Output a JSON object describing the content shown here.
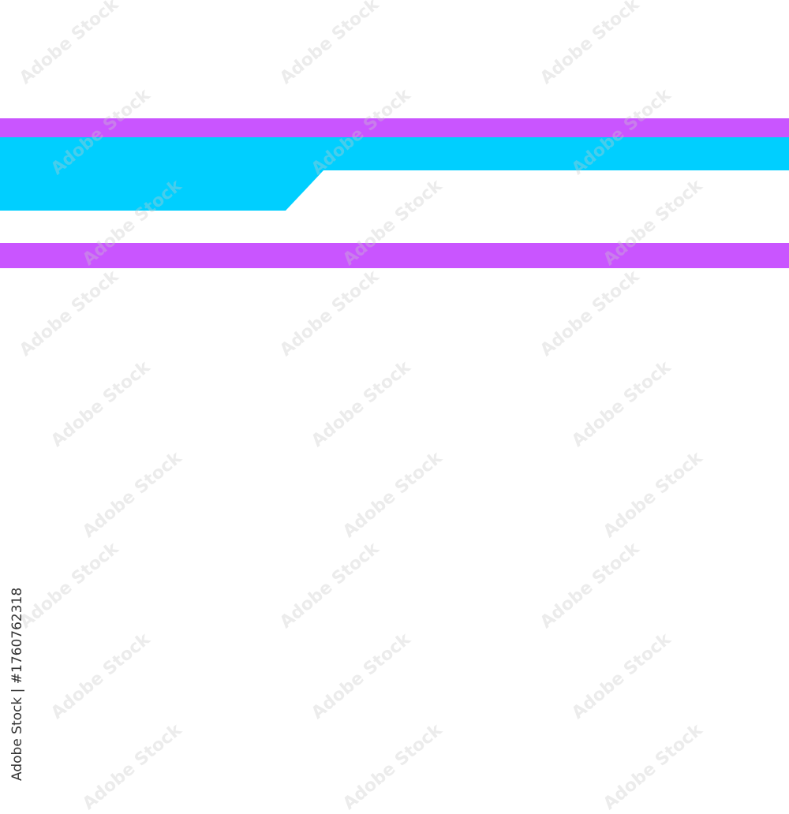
{
  "colors": {
    "magenta": "#c955ff",
    "cyan": "#00cfff",
    "background": "#ffffff"
  },
  "credit": {
    "text": "Adobe Stock | #1760762318"
  },
  "watermark": {
    "text": "Adobe Stock"
  }
}
